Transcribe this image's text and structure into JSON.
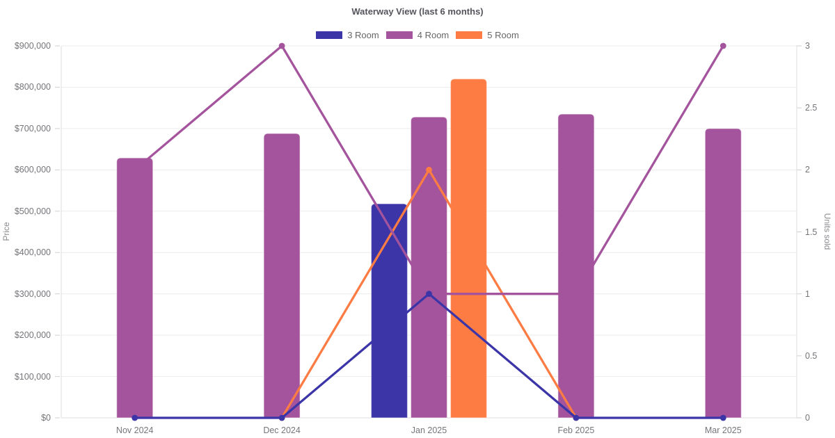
{
  "title": "Waterway View (last 6 months)",
  "legend": {
    "items": [
      {
        "label": "3 Room",
        "color": "#3B35A8"
      },
      {
        "label": "4 Room",
        "color": "#A4549C"
      },
      {
        "label": "5 Room",
        "color": "#FD7C44"
      }
    ]
  },
  "axes": {
    "left": {
      "title": "Price",
      "tick_labels": [
        "$0",
        "$100,000",
        "$200,000",
        "$300,000",
        "$400,000",
        "$500,000",
        "$600,000",
        "$700,000",
        "$800,000",
        "$900,000"
      ]
    },
    "right": {
      "title": "Units sold",
      "tick_labels": [
        "0",
        "0.5",
        "1",
        "1.5",
        "2",
        "2.5",
        "3"
      ]
    },
    "bottom": {
      "tick_labels": [
        "Nov 2024",
        "Dec 2024",
        "Jan 2025",
        "Feb 2025",
        "Mar 2025"
      ]
    }
  },
  "chart_data": {
    "type": "bar",
    "subtype": "grouped-bars-with-line-overlay-dual-axis",
    "title": "Waterway View (last 6 months)",
    "categories": [
      "Nov 2024",
      "Dec 2024",
      "Jan 2025",
      "Feb 2025",
      "Mar 2025"
    ],
    "bar_series": [
      {
        "name": "3 Room",
        "yaxis": "left",
        "color": "#3B35A8",
        "values": [
          null,
          null,
          518000,
          null,
          null
        ]
      },
      {
        "name": "4 Room",
        "yaxis": "left",
        "color": "#A4549C",
        "values": [
          629000,
          688000,
          728000,
          735000,
          700000
        ]
      },
      {
        "name": "5 Room",
        "yaxis": "left",
        "color": "#FD7C44",
        "values": [
          null,
          null,
          820000,
          null,
          null
        ]
      }
    ],
    "line_series": [
      {
        "name": "3 Room",
        "yaxis": "right",
        "color": "#3B35A8",
        "values": [
          0,
          0,
          1,
          0,
          0
        ]
      },
      {
        "name": "4 Room",
        "yaxis": "right",
        "color": "#A4549C",
        "values": [
          2,
          3,
          1,
          1,
          3
        ]
      },
      {
        "name": "5 Room",
        "yaxis": "right",
        "color": "#FD7C44",
        "values": [
          null,
          0,
          2,
          0,
          null
        ]
      }
    ],
    "xlabel": "",
    "ylabel": "Price",
    "ylabel_right": "Units sold",
    "ylim": [
      0,
      900000
    ],
    "ylim_right": [
      0,
      3
    ],
    "grid": true,
    "legend_position": "top"
  },
  "colors": {
    "background": "#ffffff",
    "grid": "#ececec",
    "axis_line": "#dcdcdc",
    "tick_mark": "#cfcfcf",
    "tick_text": "#75757a",
    "title_text": "#54555c",
    "legend_text": "#666666",
    "axis_title_text": "#8a8a8e",
    "bar_border": "rgba(255,255,255,0.45)"
  }
}
